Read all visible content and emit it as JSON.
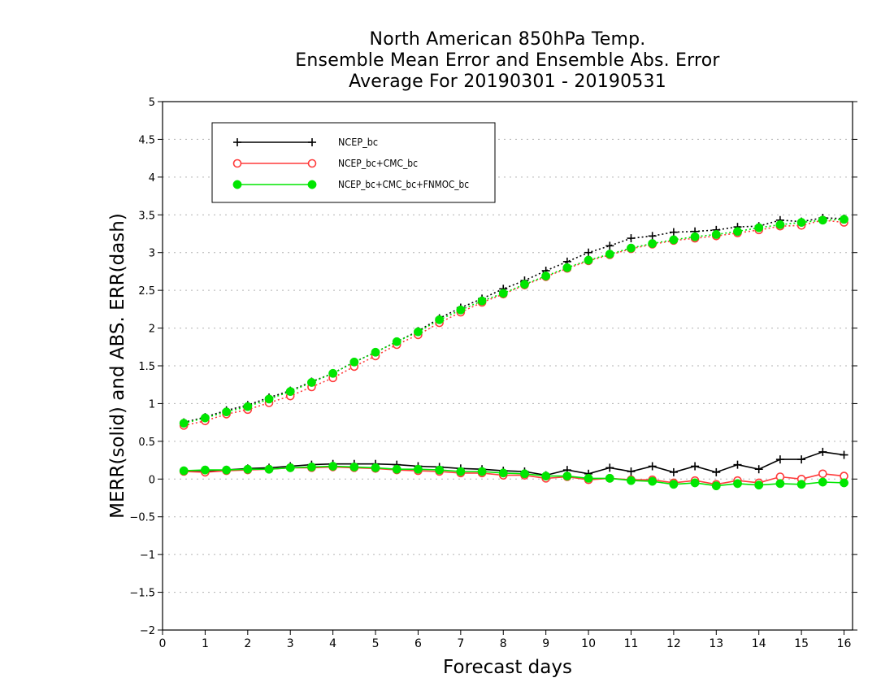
{
  "chart_data": {
    "type": "line",
    "title": [
      "North American 850hPa Temp.",
      "Ensemble Mean Error and Ensemble Abs. Error",
      "Average For 20190301 - 20190531"
    ],
    "xlabel": "Forecast days",
    "ylabel": "MERR(solid) and ABS. ERR(dash)",
    "xlim": [
      0,
      16.2
    ],
    "ylim": [
      -2,
      5
    ],
    "xticks": [
      "0",
      "1",
      "2",
      "3",
      "4",
      "5",
      "6",
      "7",
      "8",
      "9",
      "10",
      "11",
      "12",
      "13",
      "14",
      "15",
      "16"
    ],
    "yticks": [
      "-2",
      "-1.5",
      "-1",
      "-0.5",
      "0",
      "0.5",
      "1",
      "1.5",
      "2",
      "2.5",
      "3",
      "3.5",
      "4",
      "4.5",
      "5"
    ],
    "grid": "horizontal dotted",
    "legend_position": "top-left",
    "x": [
      0.5,
      1,
      1.5,
      2,
      2.5,
      3,
      3.5,
      4,
      4.5,
      5,
      5.5,
      6,
      6.5,
      7,
      7.5,
      8,
      8.5,
      9,
      9.5,
      10,
      10.5,
      11,
      11.5,
      12,
      12.5,
      13,
      13.5,
      14,
      14.5,
      15,
      15.5,
      16
    ],
    "series": [
      {
        "name": "NCEP_bc",
        "color": "#000000",
        "marker": "plus",
        "merr": [
          0.1,
          0.1,
          0.12,
          0.14,
          0.15,
          0.17,
          0.19,
          0.2,
          0.2,
          0.2,
          0.19,
          0.17,
          0.16,
          0.14,
          0.13,
          0.11,
          0.1,
          0.05,
          0.12,
          0.07,
          0.15,
          0.1,
          0.17,
          0.09,
          0.17,
          0.09,
          0.19,
          0.13,
          0.26,
          0.26,
          0.36,
          0.32
        ],
        "abs_err": [
          0.75,
          0.82,
          0.91,
          0.98,
          1.08,
          1.17,
          1.29,
          1.4,
          1.55,
          1.68,
          1.82,
          1.96,
          2.13,
          2.27,
          2.39,
          2.52,
          2.63,
          2.76,
          2.88,
          3.0,
          3.09,
          3.19,
          3.22,
          3.27,
          3.28,
          3.3,
          3.34,
          3.35,
          3.43,
          3.41,
          3.46,
          3.45
        ]
      },
      {
        "name": "NCEP_bc+CMC_bc",
        "color": "#ff3b3b",
        "marker": "open-circle",
        "merr": [
          0.1,
          0.09,
          0.11,
          0.12,
          0.13,
          0.15,
          0.15,
          0.16,
          0.15,
          0.14,
          0.12,
          0.11,
          0.1,
          0.08,
          0.08,
          0.05,
          0.05,
          0.01,
          0.03,
          -0.01,
          0.01,
          -0.01,
          -0.01,
          -0.05,
          -0.02,
          -0.07,
          -0.02,
          -0.05,
          0.03,
          0.0,
          0.07,
          0.04
        ],
        "abs_err": [
          0.71,
          0.77,
          0.86,
          0.92,
          1.01,
          1.1,
          1.22,
          1.34,
          1.49,
          1.63,
          1.78,
          1.91,
          2.07,
          2.21,
          2.34,
          2.45,
          2.57,
          2.68,
          2.79,
          2.89,
          2.97,
          3.05,
          3.11,
          3.16,
          3.19,
          3.22,
          3.26,
          3.3,
          3.35,
          3.36,
          3.43,
          3.4
        ]
      },
      {
        "name": "NCEP_bc+CMC_bc+FNMOC_bc",
        "color": "#00e600",
        "marker": "filled-circle",
        "merr": [
          0.11,
          0.12,
          0.12,
          0.13,
          0.13,
          0.15,
          0.16,
          0.17,
          0.16,
          0.15,
          0.13,
          0.13,
          0.12,
          0.1,
          0.1,
          0.08,
          0.07,
          0.04,
          0.04,
          0.01,
          0.01,
          -0.02,
          -0.03,
          -0.07,
          -0.05,
          -0.09,
          -0.06,
          -0.08,
          -0.06,
          -0.07,
          -0.04,
          -0.05
        ],
        "abs_err": [
          0.74,
          0.81,
          0.89,
          0.96,
          1.06,
          1.16,
          1.28,
          1.4,
          1.55,
          1.68,
          1.82,
          1.95,
          2.11,
          2.24,
          2.36,
          2.46,
          2.58,
          2.69,
          2.8,
          2.9,
          2.98,
          3.06,
          3.12,
          3.17,
          3.21,
          3.24,
          3.28,
          3.33,
          3.37,
          3.4,
          3.43,
          3.44
        ]
      }
    ]
  }
}
